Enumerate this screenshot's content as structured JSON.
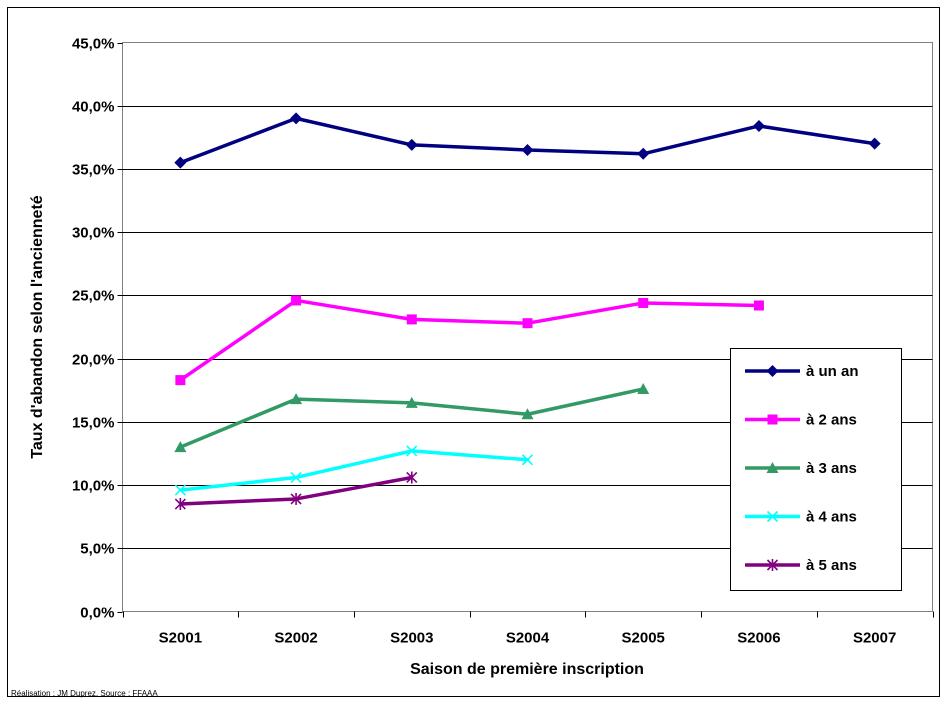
{
  "chart_data": {
    "type": "line",
    "title": "",
    "xlabel": "Saison de première inscription",
    "ylabel": "Taux d'abandon selon l'ancienneté",
    "categories": [
      "S2001",
      "S2002",
      "S2003",
      "S2004",
      "S2005",
      "S2006",
      "S2007"
    ],
    "ylim": [
      0,
      45
    ],
    "yticks": [
      "0,0%",
      "5,0%",
      "10,0%",
      "15,0%",
      "20,0%",
      "25,0%",
      "30,0%",
      "35,0%",
      "40,0%",
      "45,0%"
    ],
    "grid": true,
    "legend_position": "right",
    "series": [
      {
        "name": "à un an",
        "color": "#000080",
        "marker": "diamond",
        "values": [
          35.5,
          39.0,
          36.9,
          36.5,
          36.2,
          38.4,
          37.0
        ]
      },
      {
        "name": "à 2 ans",
        "color": "#ff00ff",
        "marker": "square",
        "values": [
          18.3,
          24.6,
          23.1,
          22.8,
          24.4,
          24.2,
          null
        ]
      },
      {
        "name": "à 3 ans",
        "color": "#339966",
        "marker": "triangle",
        "values": [
          13.0,
          16.8,
          16.5,
          15.6,
          17.6,
          null,
          null
        ]
      },
      {
        "name": "à 4 ans",
        "color": "#00ffff",
        "marker": "x",
        "values": [
          9.6,
          10.6,
          12.7,
          12.0,
          null,
          null,
          null
        ]
      },
      {
        "name": "à 5 ans",
        "color": "#800080",
        "marker": "star",
        "values": [
          8.5,
          8.9,
          10.6,
          null,
          null,
          null,
          null
        ]
      }
    ]
  },
  "footer": {
    "credit": "Réalisation : JM Duprez. Source : FFAAA"
  }
}
